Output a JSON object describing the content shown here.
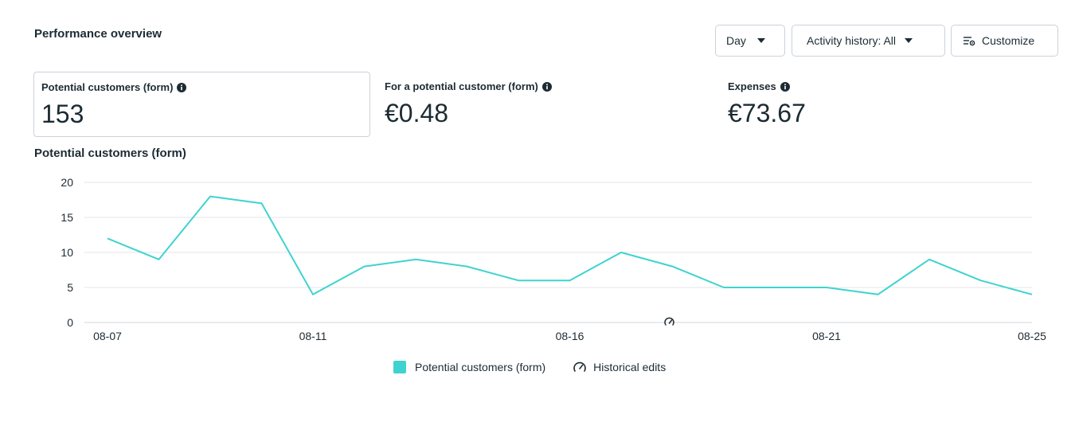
{
  "header": {
    "title": "Performance overview"
  },
  "toolbar": {
    "day_label": "Day",
    "activity_label": "Activity history: All",
    "customize_label": "Customize"
  },
  "metrics": [
    {
      "label": "Potential customers (form)",
      "value": "153",
      "icon": "info-icon",
      "selected": true
    },
    {
      "label": "For a potential customer (form)",
      "value": "€0.48",
      "icon": "info-icon",
      "selected": false
    },
    {
      "label": "Expenses",
      "value": "€73.67",
      "icon": "info-icon",
      "selected": false
    }
  ],
  "legend": {
    "series_label": "Potential customers (form)",
    "edits_label": "Historical edits"
  },
  "colors": {
    "series": "#3fd3d0",
    "grid": "#e4e6eb",
    "axis_text": "#1c2b33"
  },
  "chart_data": {
    "type": "line",
    "title": "Potential customers (form)",
    "xlabel": "",
    "ylabel": "",
    "x": [
      "08-07",
      "08-08",
      "08-09",
      "08-10",
      "08-11",
      "08-12",
      "08-13",
      "08-14",
      "08-15",
      "08-16",
      "08-17",
      "08-18",
      "08-19",
      "08-20",
      "08-21",
      "08-22",
      "08-23",
      "08-24",
      "08-25"
    ],
    "x_tick_labels": [
      "08-07",
      "08-11",
      "08-16",
      "08-21",
      "08-25"
    ],
    "y_ticks": [
      0,
      5,
      10,
      15,
      20
    ],
    "ylim": [
      0,
      20
    ],
    "grid": true,
    "legend_position": "bottom-center",
    "series": [
      {
        "name": "Potential customers (form)",
        "values": [
          12,
          9,
          18,
          17,
          4,
          8,
          9,
          8,
          6,
          6,
          10,
          8,
          5,
          5,
          5,
          4,
          9,
          6,
          4
        ]
      }
    ],
    "annotations": [
      {
        "type": "historical-edit",
        "x": "08-18",
        "icon": "gauge-icon"
      }
    ]
  }
}
